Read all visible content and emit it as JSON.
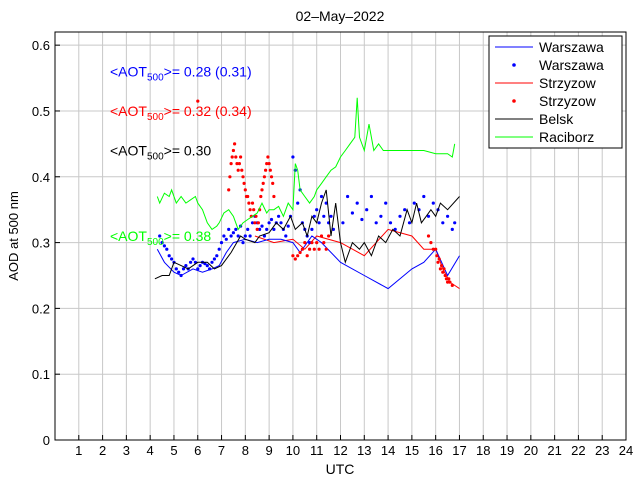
{
  "chart_data": {
    "type": "line",
    "title": "02–May–2022",
    "xlabel": "UTC",
    "ylabel": "AOD at 500 nm",
    "xlim": [
      0,
      24
    ],
    "ylim": [
      0,
      0.62
    ],
    "grid": true,
    "legend_position": "top-right",
    "x_ticks": [
      1,
      2,
      3,
      4,
      5,
      6,
      7,
      8,
      9,
      10,
      11,
      12,
      13,
      14,
      15,
      16,
      17,
      18,
      19,
      20,
      21,
      22,
      23,
      24
    ],
    "y_ticks": [
      0,
      0.1,
      0.2,
      0.3,
      0.4,
      0.5,
      0.6
    ],
    "legend": [
      {
        "label": "Warszawa",
        "style": "line",
        "color": "#0000ff"
      },
      {
        "label": "Warszawa",
        "style": "dots",
        "color": "#0000ff"
      },
      {
        "label": "Strzyzow",
        "style": "line",
        "color": "#ff0000"
      },
      {
        "label": "Strzyzow",
        "style": "dots",
        "color": "#ff0000"
      },
      {
        "label": "Belsk",
        "style": "line",
        "color": "#000000"
      },
      {
        "label": "Raciborz",
        "style": "line",
        "color": "#00ff00"
      }
    ],
    "annotations": [
      {
        "prefix": "<AOT",
        "sub": "500",
        "suffix": ">= 0.28 (0.31)",
        "color": "#0000ff",
        "y": 0.56
      },
      {
        "prefix": "<AOT",
        "sub": "500",
        "suffix": ">= 0.32 (0.34)",
        "color": "#ff0000",
        "y": 0.5
      },
      {
        "prefix": "<AOT",
        "sub": "500",
        "suffix": ">= 0.30",
        "color": "#000000",
        "y": 0.44
      },
      {
        "prefix": "<AOT",
        "sub": "500",
        "suffix": ">= 0.38",
        "color": "#00ff00",
        "y": 0.31
      }
    ],
    "series": [
      {
        "style": "line",
        "color": "#ff0000",
        "x": [
          8.4,
          9.2,
          10.0,
          10.5,
          11.0,
          12.0,
          13.0,
          14.0,
          15.0,
          15.5,
          16.0,
          16.3,
          16.6,
          16.8,
          17.0
        ],
        "y": [
          0.31,
          0.3,
          0.305,
          0.29,
          0.31,
          0.3,
          0.28,
          0.32,
          0.31,
          0.29,
          0.29,
          0.26,
          0.24,
          0.235,
          0.23
        ]
      },
      {
        "style": "line",
        "color": "#0000ff",
        "x": [
          4.3,
          4.6,
          5.0,
          5.3,
          5.8,
          6.2,
          6.6,
          6.9,
          7.2,
          7.5,
          8.0,
          8.5,
          9.0,
          9.5,
          10.0,
          10.3,
          10.8,
          11.2,
          12.0,
          13.0,
          14.0,
          15.0,
          15.5,
          16.0,
          16.5,
          17.0
        ],
        "y": [
          0.29,
          0.27,
          0.255,
          0.25,
          0.26,
          0.255,
          0.26,
          0.265,
          0.285,
          0.3,
          0.305,
          0.3,
          0.305,
          0.305,
          0.3,
          0.285,
          0.31,
          0.3,
          0.27,
          0.25,
          0.23,
          0.26,
          0.27,
          0.29,
          0.25,
          0.28
        ]
      },
      {
        "style": "dots",
        "color": "#0000ff",
        "x": [
          4.4,
          4.5,
          4.6,
          4.7,
          4.8,
          4.9,
          5.0,
          5.1,
          5.2,
          5.3,
          5.4,
          5.5,
          5.6,
          5.7,
          5.8,
          5.9,
          6.0,
          6.1,
          6.2,
          6.3,
          6.4,
          6.5,
          6.6,
          6.7,
          6.8,
          6.9,
          7.0,
          7.1,
          7.2,
          7.3,
          7.4,
          7.5,
          7.6,
          7.7,
          7.8,
          7.9,
          8.0,
          8.1,
          8.2,
          8.3,
          8.4,
          8.5,
          8.6,
          8.7,
          8.8,
          8.9,
          9.0,
          9.1,
          9.2,
          9.3,
          9.4,
          9.5,
          9.6,
          9.7,
          9.8,
          9.9,
          10.0,
          10.1,
          10.2,
          10.3,
          10.4,
          10.5,
          10.6,
          10.7,
          10.8,
          10.9,
          11.0,
          11.1,
          11.2,
          11.3,
          11.4,
          11.5,
          11.6,
          11.7,
          12.1,
          12.3,
          12.5,
          12.7,
          12.9,
          13.1,
          13.3,
          13.5,
          13.7,
          13.9,
          14.1,
          14.3,
          14.5,
          14.7,
          14.9,
          15.1,
          15.3,
          15.5,
          15.7,
          15.9,
          16.1,
          16.3,
          16.5,
          16.7,
          16.8
        ],
        "y": [
          0.31,
          0.3,
          0.295,
          0.29,
          0.28,
          0.275,
          0.27,
          0.26,
          0.255,
          0.25,
          0.26,
          0.265,
          0.26,
          0.27,
          0.275,
          0.27,
          0.26,
          0.265,
          0.27,
          0.268,
          0.265,
          0.26,
          0.27,
          0.275,
          0.28,
          0.29,
          0.3,
          0.31,
          0.305,
          0.32,
          0.31,
          0.315,
          0.32,
          0.31,
          0.325,
          0.3,
          0.31,
          0.32,
          0.31,
          0.33,
          0.34,
          0.33,
          0.32,
          0.325,
          0.31,
          0.32,
          0.33,
          0.335,
          0.32,
          0.33,
          0.34,
          0.33,
          0.32,
          0.31,
          0.325,
          0.34,
          0.43,
          0.41,
          0.36,
          0.38,
          0.33,
          0.32,
          0.31,
          0.3,
          0.32,
          0.34,
          0.35,
          0.33,
          0.37,
          0.34,
          0.36,
          0.33,
          0.34,
          0.32,
          0.33,
          0.37,
          0.345,
          0.36,
          0.335,
          0.35,
          0.37,
          0.33,
          0.34,
          0.36,
          0.33,
          0.32,
          0.34,
          0.35,
          0.33,
          0.36,
          0.35,
          0.37,
          0.34,
          0.36,
          0.35,
          0.33,
          0.34,
          0.32,
          0.33
        ]
      },
      {
        "style": "dots",
        "color": "#ff0000",
        "x": [
          6.0,
          7.3,
          7.35,
          7.4,
          7.45,
          7.5,
          7.55,
          7.6,
          7.65,
          7.7,
          7.75,
          7.8,
          7.85,
          7.9,
          7.95,
          8.0,
          8.05,
          8.1,
          8.15,
          8.2,
          8.25,
          8.3,
          8.35,
          8.4,
          8.45,
          8.5,
          8.55,
          8.6,
          8.65,
          8.7,
          8.75,
          8.8,
          8.85,
          8.9,
          8.95,
          9.0,
          9.05,
          9.1,
          9.15,
          9.2,
          10.0,
          10.1,
          10.2,
          10.3,
          10.4,
          10.5,
          10.6,
          10.7,
          10.8,
          10.9,
          11.0,
          11.1,
          11.2,
          11.3,
          11.4,
          11.5,
          15.7,
          15.8,
          15.9,
          16.0,
          16.05,
          16.1,
          16.15,
          16.2,
          16.25,
          16.3,
          16.35,
          16.4,
          16.45,
          16.5,
          16.55,
          16.6,
          16.7
        ],
        "y": [
          0.515,
          0.38,
          0.4,
          0.42,
          0.43,
          0.44,
          0.45,
          0.43,
          0.42,
          0.41,
          0.42,
          0.43,
          0.41,
          0.4,
          0.39,
          0.38,
          0.37,
          0.37,
          0.36,
          0.35,
          0.34,
          0.36,
          0.35,
          0.33,
          0.34,
          0.32,
          0.33,
          0.35,
          0.37,
          0.38,
          0.39,
          0.4,
          0.41,
          0.42,
          0.43,
          0.42,
          0.41,
          0.4,
          0.39,
          0.37,
          0.28,
          0.275,
          0.28,
          0.285,
          0.29,
          0.3,
          0.28,
          0.29,
          0.3,
          0.29,
          0.3,
          0.29,
          0.31,
          0.3,
          0.29,
          0.31,
          0.31,
          0.3,
          0.29,
          0.29,
          0.28,
          0.27,
          0.275,
          0.26,
          0.265,
          0.255,
          0.26,
          0.25,
          0.245,
          0.24,
          0.245,
          0.24,
          0.235
        ]
      },
      {
        "style": "line",
        "color": "#000000",
        "x": [
          4.2,
          4.5,
          4.8,
          5.0,
          5.3,
          5.6,
          6.0,
          6.4,
          6.7,
          7.0,
          7.4,
          7.8,
          8.0,
          8.4,
          8.6,
          9.0,
          9.3,
          9.6,
          9.9,
          10.1,
          10.4,
          10.6,
          10.8,
          11.0,
          11.2,
          11.4,
          11.6,
          11.8,
          12.0,
          12.2,
          12.5,
          12.8,
          13.0,
          13.3,
          13.6,
          13.9,
          14.2,
          14.5,
          14.8,
          15.0,
          15.2,
          15.4,
          15.6,
          15.8,
          16.0,
          16.2,
          16.5,
          17.0
        ],
        "y": [
          0.245,
          0.25,
          0.25,
          0.27,
          0.265,
          0.26,
          0.27,
          0.27,
          0.26,
          0.265,
          0.285,
          0.31,
          0.305,
          0.3,
          0.31,
          0.315,
          0.33,
          0.32,
          0.34,
          0.32,
          0.33,
          0.31,
          0.34,
          0.33,
          0.36,
          0.38,
          0.31,
          0.36,
          0.3,
          0.27,
          0.3,
          0.29,
          0.3,
          0.28,
          0.31,
          0.3,
          0.32,
          0.31,
          0.35,
          0.33,
          0.36,
          0.33,
          0.34,
          0.35,
          0.34,
          0.36,
          0.35,
          0.37
        ]
      },
      {
        "style": "line",
        "color": "#00ff00",
        "x": [
          4.3,
          4.4,
          4.6,
          4.8,
          4.9,
          5.1,
          5.3,
          5.5,
          5.7,
          5.9,
          6.0,
          6.2,
          6.4,
          6.6,
          6.8,
          6.9,
          7.1,
          7.3,
          7.5,
          7.7,
          7.9,
          8.1,
          8.3,
          8.5,
          8.7,
          8.9,
          9.0,
          9.2,
          9.4,
          9.6,
          9.8,
          10.0,
          10.1,
          10.2,
          10.3,
          10.5,
          10.7,
          10.9,
          11.0,
          11.2,
          11.4,
          11.6,
          11.8,
          12.0,
          12.2,
          12.4,
          12.6,
          12.7,
          12.8,
          13.0,
          13.2,
          13.4,
          13.6,
          13.8,
          14.0,
          14.5,
          15.0,
          15.5,
          16.0,
          16.5,
          16.7,
          16.8
        ],
        "y": [
          0.37,
          0.36,
          0.375,
          0.37,
          0.38,
          0.36,
          0.37,
          0.36,
          0.365,
          0.37,
          0.36,
          0.35,
          0.33,
          0.32,
          0.325,
          0.33,
          0.345,
          0.35,
          0.34,
          0.32,
          0.33,
          0.335,
          0.34,
          0.345,
          0.36,
          0.345,
          0.35,
          0.35,
          0.355,
          0.34,
          0.36,
          0.35,
          0.42,
          0.41,
          0.38,
          0.37,
          0.36,
          0.37,
          0.38,
          0.39,
          0.4,
          0.41,
          0.415,
          0.43,
          0.44,
          0.45,
          0.46,
          0.52,
          0.46,
          0.44,
          0.48,
          0.44,
          0.45,
          0.44,
          0.44,
          0.44,
          0.44,
          0.44,
          0.435,
          0.435,
          0.43,
          0.45
        ]
      }
    ]
  }
}
